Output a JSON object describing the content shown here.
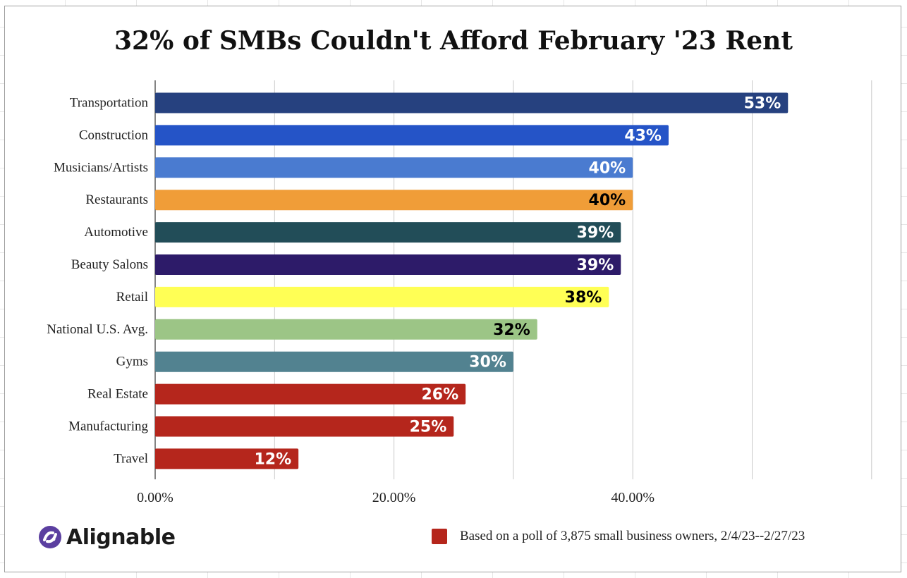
{
  "chart_data": {
    "type": "bar",
    "orientation": "horizontal",
    "title": "32% of SMBs Couldn't Afford February '23 Rent",
    "categories": [
      "Transportation",
      "Construction",
      "Musicians/Artists",
      "Restaurants",
      "Automotive",
      "Beauty Salons",
      "Retail",
      "National U.S. Avg.",
      "Gyms",
      "Real Estate",
      "Manufacturing",
      "Travel"
    ],
    "values": [
      53,
      43,
      40,
      40,
      39,
      39,
      38,
      32,
      30,
      26,
      25,
      12
    ],
    "data_labels": [
      "53%",
      "43%",
      "40%",
      "40%",
      "39%",
      "39%",
      "38%",
      "32%",
      "30%",
      "26%",
      "25%",
      "12%"
    ],
    "bar_colors": [
      "#26417f",
      "#2554c7",
      "#4a7bd0",
      "#f09d38",
      "#224d58",
      "#2d1b69",
      "#ffff55",
      "#9cc586",
      "#528290",
      "#b5261c",
      "#b5261c",
      "#b5261c"
    ],
    "label_colors": [
      "#ffffff",
      "#ffffff",
      "#ffffff",
      "#000000",
      "#ffffff",
      "#ffffff",
      "#000000",
      "#000000",
      "#ffffff",
      "#ffffff",
      "#ffffff",
      "#ffffff"
    ],
    "xlim": [
      0,
      60
    ],
    "x_ticks": [
      0,
      20,
      40
    ],
    "x_tick_labels": [
      "0.00%",
      "20.00%",
      "40.00%"
    ],
    "grid": true,
    "legend": {
      "position": "bottom-right",
      "label": "Based on a poll of 3,875 small business owners, 2/4/23--2/27/23",
      "color": "#b5261c"
    }
  },
  "brand": {
    "name": "Alignable",
    "color": "#5b3fa0"
  }
}
